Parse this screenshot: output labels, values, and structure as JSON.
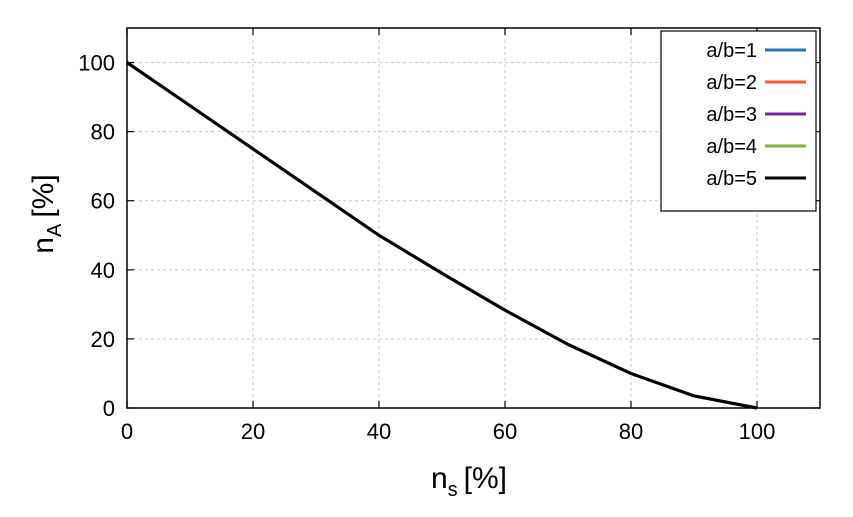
{
  "chart_data": {
    "type": "line",
    "xlim": [
      0,
      110
    ],
    "ylim": [
      0,
      110
    ],
    "xticks": [
      0,
      20,
      40,
      60,
      80,
      100
    ],
    "yticks": [
      0,
      20,
      40,
      60,
      80,
      100
    ],
    "xlabel": {
      "main": "n",
      "sub": "s",
      "unit": "[%]"
    },
    "ylabel": {
      "main": "n",
      "sub": "A",
      "unit": "[%]"
    },
    "grid": true,
    "legend_position": "top-right",
    "series": [
      {
        "name": "a/b=1",
        "color": "#1f77b4",
        "x": [
          0,
          10,
          20,
          30,
          40,
          50,
          60,
          70,
          80,
          90,
          100
        ],
        "y": [
          100,
          87.5,
          75,
          62.5,
          50,
          39,
          28.3,
          18.4,
          10,
          3.5,
          0
        ]
      },
      {
        "name": "a/b=2",
        "color": "#ff5722",
        "x": [
          0,
          10,
          20,
          30,
          40,
          50,
          60,
          70,
          80,
          90,
          100
        ],
        "y": [
          100,
          87.5,
          75,
          62.5,
          50,
          39,
          28.3,
          18.4,
          10,
          3.5,
          0
        ]
      },
      {
        "name": "a/b=3",
        "color": "#7b1fa2",
        "x": [
          0,
          10,
          20,
          30,
          40,
          50,
          60,
          70,
          80,
          90,
          100
        ],
        "y": [
          100,
          87.5,
          75,
          62.5,
          50,
          39,
          28.3,
          18.4,
          10,
          3.5,
          0
        ]
      },
      {
        "name": "a/b=4",
        "color": "#7cb342",
        "x": [
          0,
          10,
          20,
          30,
          40,
          50,
          60,
          70,
          80,
          90,
          100
        ],
        "y": [
          100,
          87.5,
          75,
          62.5,
          50,
          39,
          28.3,
          18.4,
          10,
          3.5,
          0
        ]
      },
      {
        "name": "a/b=5",
        "color": "#000000",
        "x": [
          0,
          10,
          20,
          30,
          40,
          50,
          60,
          70,
          80,
          90,
          100
        ],
        "y": [
          100,
          87.5,
          75,
          62.5,
          50,
          39,
          28.3,
          18.4,
          10,
          3.5,
          0
        ]
      }
    ]
  }
}
